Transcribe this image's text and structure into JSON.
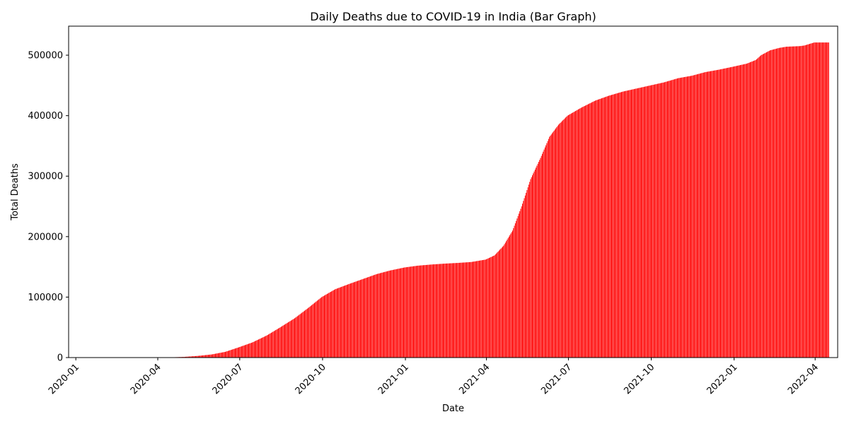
{
  "chart_data": {
    "type": "bar",
    "title": "Daily Deaths due to COVID-19 in India (Bar Graph)",
    "xlabel": "Date",
    "ylabel": "Total Deaths",
    "xlim": [
      "2019-12-24",
      "2022-04-26"
    ],
    "ylim": [
      0,
      548000
    ],
    "x_ticks": [
      "2020-01",
      "2020-04",
      "2020-07",
      "2020-10",
      "2021-01",
      "2021-04",
      "2021-07",
      "2021-10",
      "2022-01",
      "2022-04"
    ],
    "y_ticks": [
      0,
      100000,
      200000,
      300000,
      400000,
      500000
    ],
    "bar_color": "#ff0000",
    "series": [
      {
        "x": [
          "2020-01-01",
          "2020-03-10",
          "2020-03-31",
          "2020-04-15",
          "2020-04-30",
          "2020-05-15",
          "2020-05-31",
          "2020-06-15",
          "2020-06-30",
          "2020-07-15",
          "2020-07-31",
          "2020-08-15",
          "2020-08-31",
          "2020-09-15",
          "2020-09-30",
          "2020-10-15",
          "2020-10-31",
          "2020-11-15",
          "2020-11-30",
          "2020-12-15",
          "2020-12-31",
          "2021-01-15",
          "2021-01-31",
          "2021-02-15",
          "2021-02-28",
          "2021-03-15",
          "2021-03-31",
          "2021-04-10",
          "2021-04-20",
          "2021-04-30",
          "2021-05-10",
          "2021-05-20",
          "2021-05-31",
          "2021-06-10",
          "2021-06-20",
          "2021-06-30",
          "2021-07-15",
          "2021-07-31",
          "2021-08-15",
          "2021-08-31",
          "2021-09-15",
          "2021-09-30",
          "2021-10-15",
          "2021-10-31",
          "2021-11-15",
          "2021-11-30",
          "2021-12-15",
          "2021-12-31",
          "2022-01-15",
          "2022-01-25",
          "2022-01-31",
          "2022-02-10",
          "2022-02-20",
          "2022-02-28",
          "2022-03-15",
          "2022-03-20",
          "2022-03-31",
          "2022-04-10",
          "2022-04-16"
        ],
        "values": [
          0,
          0,
          35,
          400,
          1100,
          2700,
          5200,
          9500,
          17000,
          25000,
          36500,
          50000,
          65000,
          82000,
          100000,
          113000,
          122000,
          130000,
          138000,
          144000,
          149000,
          152000,
          154000,
          155500,
          156500,
          158000,
          162000,
          169000,
          185000,
          210000,
          250000,
          295000,
          330000,
          365000,
          385000,
          400000,
          413000,
          425000,
          433000,
          440000,
          445000,
          450000,
          455000,
          462000,
          466000,
          472000,
          476000,
          481000,
          486000,
          492000,
          500000,
          508000,
          512000,
          514000,
          515000,
          516000,
          521000,
          521000,
          521000
        ]
      }
    ]
  }
}
